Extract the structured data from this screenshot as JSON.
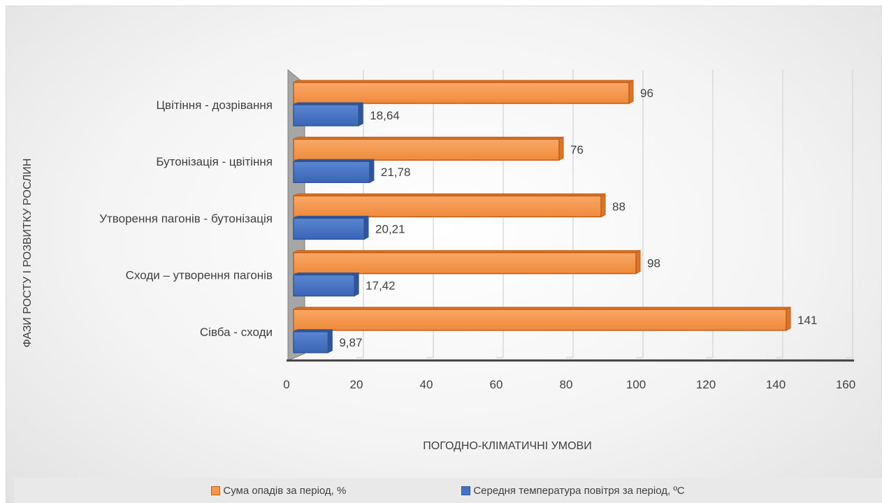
{
  "chart_data": {
    "type": "bar",
    "orientation": "horizontal",
    "categories": [
      "Цвітіння - дозрівання",
      "Бутонізація - цвітіння",
      "Утворення пагонів - бутонізація",
      "Сходи – утворення пагонів",
      "Сівба - сходи"
    ],
    "series": [
      {
        "name": "Сума опадів за період, %",
        "color": "#f79646",
        "values": [
          96,
          76,
          88,
          98,
          141
        ],
        "labels": [
          "96",
          "76",
          "88",
          "98",
          "141"
        ]
      },
      {
        "name": "Середня температура повітря за період, ºС",
        "color": "#4472c4",
        "values": [
          18.64,
          21.78,
          20.21,
          17.42,
          9.87
        ],
        "labels": [
          "18,64",
          "21,78",
          "20,21",
          "17,42",
          "9,87"
        ]
      }
    ],
    "xlabel": "ПОГОДНО-КЛІМАТИЧНІ УМОВИ",
    "ylabel": "ФАЗИ РОСТУ І РОЗВИТКУ РОСЛИН",
    "xlim": [
      0,
      160
    ],
    "xticks": [
      0,
      20,
      40,
      60,
      80,
      100,
      120,
      140,
      160
    ],
    "grid": true,
    "legend": "bottom"
  }
}
